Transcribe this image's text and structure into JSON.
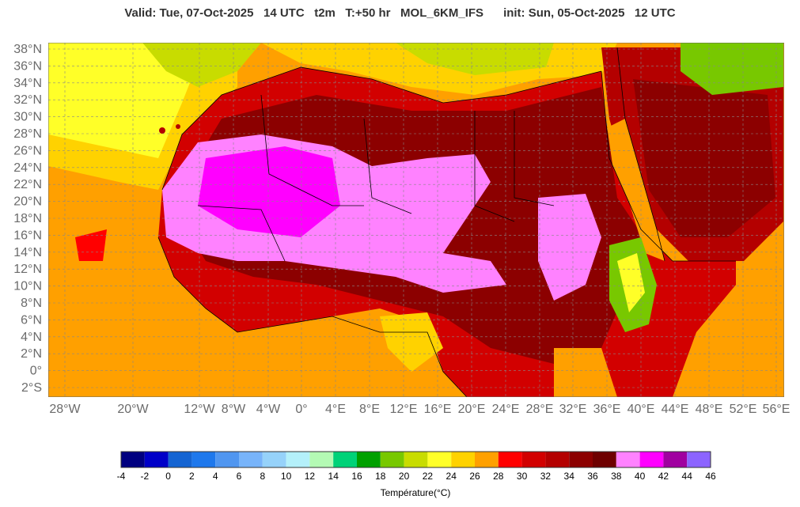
{
  "title": {
    "valid": "Valid: Tue, 07-Oct-2025",
    "time": "14 UTC",
    "variable": "t2m",
    "forecast": "T:+50 hr",
    "model": "MOL_6KM_IFS",
    "init": "init: Sun, 05-Oct-2025   12 UTC"
  },
  "map": {
    "lat_labels": [
      "38°N",
      "36°N",
      "34°N",
      "32°N",
      "30°N",
      "28°N",
      "26°N",
      "24°N",
      "22°N",
      "20°N",
      "18°N",
      "16°N",
      "14°N",
      "12°N",
      "10°N",
      "8°N",
      "6°N",
      "4°N",
      "2°N",
      "0°",
      "2°S"
    ],
    "lon_labels": [
      "28°W",
      "20°W",
      "12°W",
      "8°W",
      "4°W",
      "0°",
      "4°E",
      "8°E",
      "12°E",
      "16°E",
      "20°E",
      "24°E",
      "28°E",
      "32°E",
      "36°E",
      "40°E",
      "44°E",
      "48°E",
      "52°E",
      "56°E"
    ],
    "grid": true
  },
  "colorbar": {
    "title": "Température(°C)",
    "ticks": [
      "-4",
      "-2",
      "0",
      "2",
      "4",
      "6",
      "8",
      "10",
      "12",
      "14",
      "16",
      "18",
      "20",
      "22",
      "24",
      "26",
      "28",
      "30",
      "32",
      "34",
      "36",
      "38",
      "40",
      "42",
      "44",
      "46"
    ],
    "colors": [
      "#000080",
      "#0000c8",
      "#1464d2",
      "#1e78ec",
      "#5096f0",
      "#78b4fa",
      "#96d2fa",
      "#b4f0fa",
      "#b4fab4",
      "#00d278",
      "#00a000",
      "#78c800",
      "#c8dc00",
      "#ffff28",
      "#ffd200",
      "#ffa000",
      "#ff0000",
      "#d20000",
      "#b40000",
      "#8c0000",
      "#6e0000",
      "#ff82ff",
      "#ff00ff",
      "#a000a0",
      "#8c64ff"
    ]
  }
}
